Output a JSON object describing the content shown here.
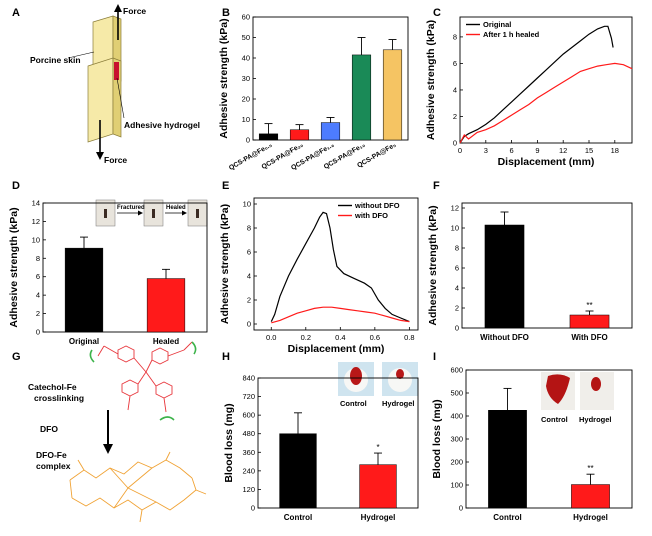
{
  "figure": {
    "panel_labels": [
      "A",
      "B",
      "C",
      "D",
      "E",
      "F",
      "G",
      "H",
      "I"
    ]
  },
  "schematic_a": {
    "force_top": "Force",
    "force_bottom": "Force",
    "porcine_skin": "Porcine skin",
    "adhesive_hydrogel": "Adhesive hydrogel"
  },
  "schematic_g": {
    "catechol_line1": "Catechol-Fe",
    "catechol_line2": "crosslinking",
    "dfo": "DFO",
    "complex_line1": "DFO-Fe",
    "complex_line2": "complex"
  },
  "inset_d": {
    "fractured": "Fractured",
    "healed": "Healed"
  },
  "inset_h": {
    "control": "Control",
    "hydrogel": "Hydrogel"
  },
  "inset_i": {
    "control": "Control",
    "hydrogel": "Hydrogel"
  },
  "colors": {
    "black": "#000000",
    "red": "#ff1a1a",
    "blue": "#4d7cff",
    "green": "#1a8a57",
    "yellow": "#f5c463",
    "inset_bg": "#cfe4ef"
  },
  "chart_data": [
    {
      "panel": "B",
      "type": "bar",
      "ylabel": "Adhesive strength (kPa)",
      "ylim": [
        0,
        60
      ],
      "yticks": [
        0,
        10,
        20,
        30,
        40,
        50,
        60
      ],
      "categories": [
        "QCS-PA@Fe₀.₅",
        "QCS-PA@Fe₂₀",
        "QCS-PA@Fe₁.₆",
        "QCS-PA@Fe₁₀",
        "QCS-PA@Fe₅"
      ],
      "values": [
        3,
        5,
        8.5,
        41.5,
        44
      ],
      "errors": [
        5,
        2.5,
        2.5,
        8.5,
        5
      ],
      "colors": [
        "#000000",
        "#ff1a1a",
        "#4d7cff",
        "#1a8a57",
        "#f5c463"
      ]
    },
    {
      "panel": "C",
      "type": "line",
      "xlabel": "Displacement (mm)",
      "ylabel": "Adhesive strength (kPa)",
      "xlim": [
        0,
        20
      ],
      "ylim": [
        0,
        9.5
      ],
      "xticks": [
        0,
        3,
        6,
        9,
        12,
        15,
        18
      ],
      "yticks": [
        0,
        2,
        4,
        6,
        8
      ],
      "legend": "top-left",
      "series": [
        {
          "name": "Original",
          "color": "#000000",
          "x": [
            0,
            0.5,
            1,
            2,
            3,
            4,
            5,
            6,
            7,
            8,
            9,
            10,
            11,
            12,
            13,
            14,
            15,
            16,
            16.8,
            17.2,
            17.6,
            17.8
          ],
          "y": [
            0,
            0.5,
            0.7,
            1.0,
            1.4,
            1.9,
            2.5,
            3.1,
            3.7,
            4.3,
            4.9,
            5.5,
            6.1,
            6.7,
            7.2,
            7.7,
            8.2,
            8.6,
            8.8,
            8.8,
            7.9,
            7.2
          ]
        },
        {
          "name": "After 1 h healed",
          "color": "#ff1a1a",
          "x": [
            0,
            0.5,
            1,
            2,
            3,
            4,
            5,
            6,
            7,
            8,
            9,
            10,
            11,
            12,
            13,
            14,
            15,
            16,
            17,
            18,
            19,
            20
          ],
          "y": [
            0,
            0.6,
            0.3,
            0.8,
            1.0,
            1.3,
            1.7,
            2.1,
            2.5,
            2.9,
            3.4,
            3.8,
            4.2,
            4.6,
            5.0,
            5.4,
            5.6,
            5.8,
            5.9,
            6.0,
            5.9,
            5.6
          ]
        }
      ]
    },
    {
      "panel": "D",
      "type": "bar",
      "ylabel": "Adhesive strength (kPa)",
      "ylim": [
        0,
        14
      ],
      "yticks": [
        0,
        2,
        4,
        6,
        8,
        10,
        12,
        14
      ],
      "categories": [
        "Original",
        "Healed"
      ],
      "values": [
        9.1,
        5.8
      ],
      "errors": [
        1.2,
        1.0
      ],
      "colors": [
        "#000000",
        "#ff1a1a"
      ]
    },
    {
      "panel": "E",
      "type": "line",
      "xlabel": "Displacement (mm)",
      "ylabel": "Adhesive strength (kPa)",
      "xlim": [
        -0.1,
        0.85
      ],
      "ylim": [
        -0.5,
        10.5
      ],
      "xticks": [
        0.0,
        0.2,
        0.4,
        0.6,
        0.8
      ],
      "yticks": [
        0,
        2,
        4,
        6,
        8,
        10
      ],
      "legend": "top-right",
      "series": [
        {
          "name": "without DFO",
          "color": "#000000",
          "x": [
            0,
            0.02,
            0.05,
            0.1,
            0.15,
            0.2,
            0.25,
            0.28,
            0.3,
            0.32,
            0.34,
            0.36,
            0.38,
            0.42,
            0.48,
            0.54,
            0.58,
            0.62,
            0.66,
            0.7,
            0.75,
            0.8
          ],
          "y": [
            0.2,
            0.8,
            2.3,
            4.0,
            5.4,
            6.7,
            8.0,
            8.9,
            9.3,
            9.2,
            8.0,
            6.2,
            4.8,
            4.2,
            3.8,
            3.4,
            3.0,
            2.0,
            1.3,
            0.8,
            0.5,
            0.2
          ]
        },
        {
          "name": "with DFO",
          "color": "#ff1a1a",
          "x": [
            0,
            0.05,
            0.1,
            0.15,
            0.2,
            0.25,
            0.3,
            0.35,
            0.4,
            0.45,
            0.5,
            0.55,
            0.6,
            0.65,
            0.7,
            0.75,
            0.8
          ],
          "y": [
            0.1,
            0.3,
            0.6,
            0.9,
            1.1,
            1.3,
            1.4,
            1.4,
            1.3,
            1.2,
            1.1,
            1.0,
            0.9,
            0.7,
            0.5,
            0.3,
            0.2
          ]
        }
      ]
    },
    {
      "panel": "F",
      "type": "bar",
      "ylabel": "Adhesive strength (kPa)",
      "ylim": [
        0,
        12.5
      ],
      "yticks": [
        0,
        2,
        4,
        6,
        8,
        10,
        12
      ],
      "categories": [
        "Without DFO",
        "With DFO"
      ],
      "values": [
        10.3,
        1.3
      ],
      "errors": [
        1.3,
        0.4
      ],
      "significance": [
        "",
        "**"
      ],
      "colors": [
        "#000000",
        "#ff1a1a"
      ]
    },
    {
      "panel": "H",
      "type": "bar",
      "ylabel": "Blood loss (mg)",
      "ylim": [
        0,
        840
      ],
      "yticks": [
        0,
        120,
        240,
        360,
        480,
        600,
        720,
        840
      ],
      "categories": [
        "Control",
        "Hydrogel"
      ],
      "values": [
        480,
        280
      ],
      "errors": [
        135,
        75
      ],
      "significance": [
        "",
        "*"
      ],
      "colors": [
        "#000000",
        "#ff1a1a"
      ]
    },
    {
      "panel": "I",
      "type": "bar",
      "ylabel": "Blood loss (mg)",
      "ylim": [
        0,
        600
      ],
      "yticks": [
        0,
        100,
        200,
        300,
        400,
        500,
        600
      ],
      "categories": [
        "Control",
        "Hydrogel"
      ],
      "values": [
        425,
        102
      ],
      "errors": [
        95,
        45
      ],
      "significance": [
        "",
        "**"
      ],
      "colors": [
        "#000000",
        "#ff1a1a"
      ]
    }
  ]
}
